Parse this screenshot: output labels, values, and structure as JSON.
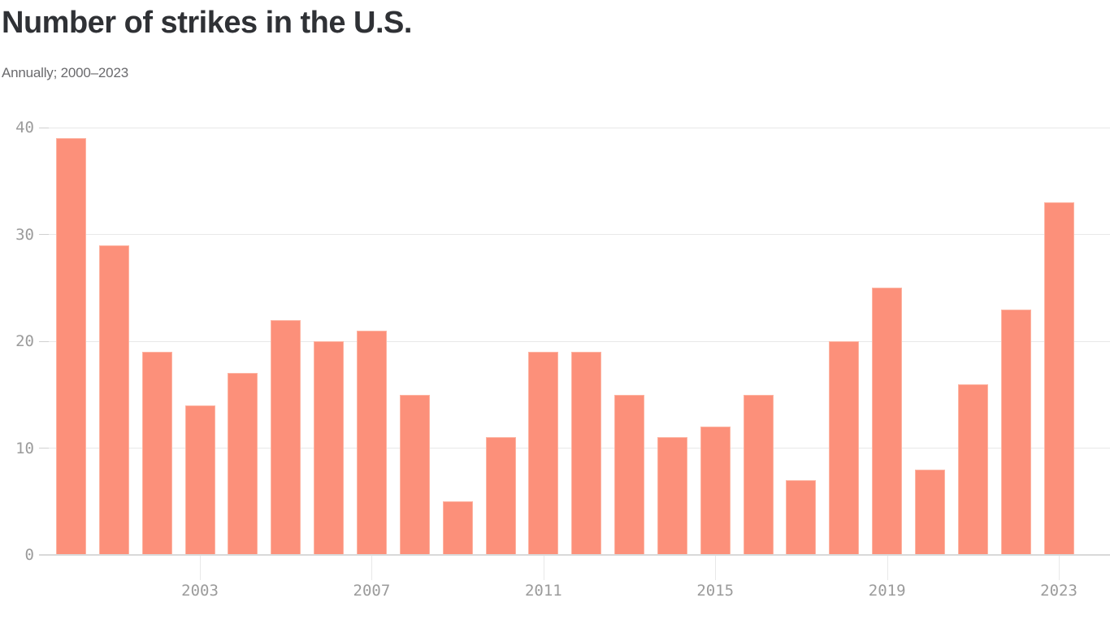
{
  "chart_data": {
    "type": "bar",
    "title": "Number of strikes in the U.S.",
    "subtitle": "Annually; 2000–2023",
    "categories": [
      2000,
      2001,
      2002,
      2003,
      2004,
      2005,
      2006,
      2007,
      2008,
      2009,
      2010,
      2011,
      2012,
      2013,
      2014,
      2015,
      2016,
      2017,
      2018,
      2019,
      2020,
      2021,
      2022,
      2023
    ],
    "values": [
      39,
      29,
      19,
      14,
      17,
      22,
      20,
      21,
      15,
      5,
      11,
      19,
      19,
      15,
      11,
      12,
      15,
      7,
      20,
      25,
      8,
      16,
      23,
      33
    ],
    "xlabel": "",
    "ylabel": "",
    "ylim": [
      0,
      40
    ],
    "yticks": [
      0,
      10,
      20,
      30,
      40
    ],
    "xticks": [
      2003,
      2007,
      2011,
      2015,
      2019,
      2023
    ],
    "grid": true,
    "legend": "none",
    "colors": {
      "bar_fill": "#fc907a",
      "bar_stroke": "#fdb4a2",
      "gridline": "#e8e8e8",
      "axis_line": "#d9d9d9",
      "tick_dash": "#d0d0d0",
      "tick_label": "#9b9b9b",
      "title": "#2f3135",
      "subtitle": "#6a6a6d"
    }
  }
}
